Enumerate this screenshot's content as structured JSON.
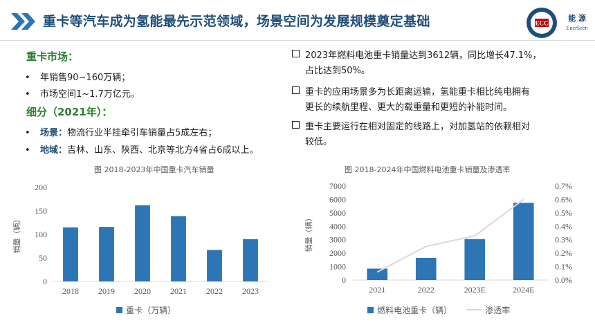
{
  "header": {
    "title": "重卡等汽车成为氢能最先示范领域，场景空间为发展规模奠定基础",
    "logo2_line1": "能 源",
    "logo2_line2": "EnerSeen",
    "logo1_text": "ECC"
  },
  "left": {
    "section1_heading": "重卡市场：",
    "section1_items": [
      "年销售90~160万辆；",
      "市场空间1~1.7万亿元。"
    ],
    "section2_heading": "细分（2021年）：",
    "section2_items": [
      {
        "keyword": "场景：",
        "text": "物流行业半挂牵引车销量占5成左右；"
      },
      {
        "keyword": "地域：",
        "text": "吉林、山东、陕西、北京等北方4省占6成以上。"
      }
    ],
    "bullet_symbol": "•"
  },
  "right": {
    "items": [
      [
        "2023年燃料电池重卡销量达到3612辆，同比增长47.1%，",
        "占比达到50%。"
      ],
      [
        "重卡的应用场景多为长距离运输，氢能重卡相比纯电拥有",
        "更长的续航里程、更大的载重量和更短的补能时间。"
      ],
      [
        "重卡主要运行在相对固定的线路上，对加氢站的依赖相对",
        "较低。"
      ]
    ]
  },
  "chart_data": [
    {
      "type": "bar",
      "title": "图 2018-2023年中国重卡汽车销量",
      "categories": [
        "2018",
        "2019",
        "2020",
        "2021",
        "2022",
        "2023"
      ],
      "series": [
        {
          "name": "重卡（万辆）",
          "values": [
            115,
            116,
            162,
            139,
            67,
            90
          ]
        }
      ],
      "ylabel": "销量（辆）",
      "ylim": [
        0,
        200
      ],
      "yticks": [
        "0",
        "50",
        "100",
        "150",
        "200"
      ],
      "color": "#2e75b6",
      "legend": "bottom"
    },
    {
      "type": "bar",
      "title": "图 2018-2024年中国燃料电池重卡销量及渗透率",
      "categories": [
        "2021",
        "2022",
        "2023E",
        "2024E"
      ],
      "series": [
        {
          "name": "燃料电池重卡（辆）",
          "type": "bar",
          "values": [
            850,
            1650,
            3050,
            5750
          ],
          "color": "#2e75b6"
        },
        {
          "name": "渗透率",
          "type": "line",
          "values": [
            0.06,
            0.25,
            0.33,
            0.6
          ],
          "color": "#d9d9d9"
        }
      ],
      "ylabel": "销量（辆）",
      "ylim": [
        0,
        7000
      ],
      "yticks": [
        "0",
        "1000",
        "2000",
        "3000",
        "4000",
        "5000",
        "6000",
        "7000"
      ],
      "y2lim": [
        0,
        0.7
      ],
      "y2ticks": [
        "0.0%",
        "0.1%",
        "0.2%",
        "0.3%",
        "0.4%",
        "0.5%",
        "0.6%",
        "0.7%"
      ],
      "legend": "bottom"
    }
  ]
}
